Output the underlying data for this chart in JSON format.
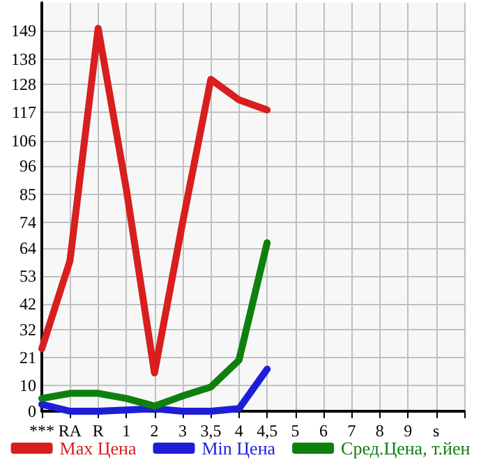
{
  "chart_data": {
    "type": "line",
    "categories": [
      "***",
      "RA",
      "R",
      "1",
      "2",
      "3",
      "3,5",
      "4",
      "4,5",
      "5",
      "6",
      "7",
      "8",
      "9",
      "s",
      null
    ],
    "series": [
      {
        "name": "Max Цена",
        "color": "#d81e1e",
        "values": [
          24.5,
          59,
          150,
          87,
          15,
          74,
          130,
          122,
          118,
          null,
          null,
          null,
          null,
          null,
          null,
          null
        ]
      },
      {
        "name": "Min Цена",
        "color": "#1e1ed8",
        "values": [
          2.7,
          0,
          0,
          0.5,
          1,
          0,
          0,
          1,
          16.5,
          null,
          null,
          null,
          null,
          null,
          null,
          null
        ]
      },
      {
        "name": "Сред.Цена, т.йен",
        "color": "#0e800e",
        "values": [
          5,
          7,
          7,
          5,
          2,
          6,
          9.5,
          20,
          66,
          null,
          null,
          null,
          null,
          null,
          null,
          null
        ]
      }
    ],
    "ylim": [
      0,
      160
    ],
    "yticks": [
      0,
      10,
      21,
      32,
      42,
      53,
      64,
      74,
      85,
      96,
      106,
      117,
      128,
      138,
      149
    ],
    "grid": true,
    "legend": "bottom",
    "marker": "none",
    "line_style": "solid"
  }
}
